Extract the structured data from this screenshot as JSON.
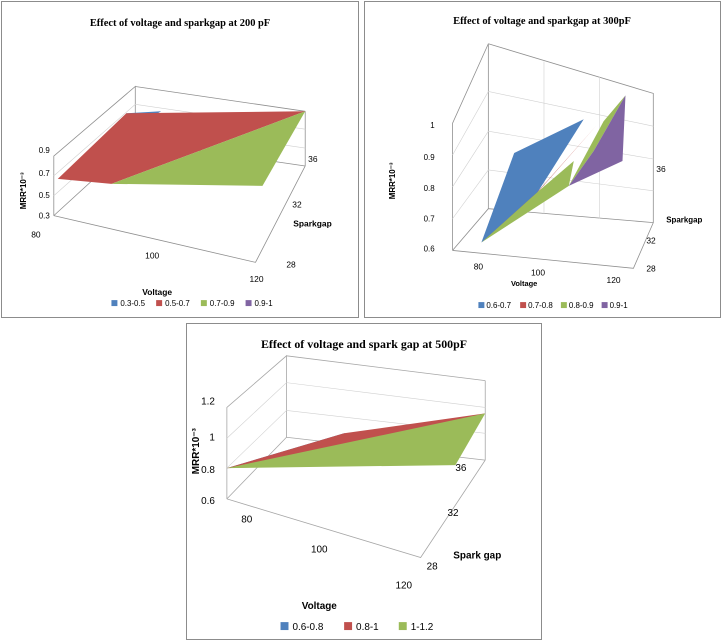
{
  "chart_data": [
    {
      "type": "surface",
      "title": "Effect of voltage and sparkgap at 200 pF",
      "xlabel": "Voltage",
      "ylabel": "Sparkgap",
      "zlabel": "MRR*10⁻³",
      "x_ticks": [
        "80",
        "100",
        "120"
      ],
      "y_ticks": [
        "28",
        "32",
        "36"
      ],
      "z_ticks": [
        "0.3",
        "0.5",
        "0.7",
        "0.9"
      ],
      "zlim": [
        0.3,
        0.9
      ],
      "legend": [
        {
          "label": "0.3-0.5",
          "color": "#4f81bd"
        },
        {
          "label": "0.5-0.7",
          "color": "#c0504d"
        },
        {
          "label": "0.7-0.9",
          "color": "#9bbb59"
        },
        {
          "label": "0.9-1",
          "color": "#8064a2"
        }
      ],
      "legend_position": "bottom",
      "grid": true
    },
    {
      "type": "surface",
      "title": "Effect of voltage and sparkgap at 300pF",
      "xlabel": "Voltage",
      "ylabel": "Sparkgap",
      "zlabel": "MRR*10⁻³",
      "x_ticks": [
        "80",
        "100",
        "120"
      ],
      "y_ticks": [
        "28",
        "32",
        "36"
      ],
      "z_ticks": [
        "0.6",
        "0.7",
        "0.8",
        "0.9",
        "1"
      ],
      "zlim": [
        0.6,
        1
      ],
      "legend": [
        {
          "label": "0.6-0.7",
          "color": "#4f81bd"
        },
        {
          "label": "0.7-0.8",
          "color": "#c0504d"
        },
        {
          "label": "0.8-0.9",
          "color": "#9bbb59"
        },
        {
          "label": "0.9-1",
          "color": "#8064a2"
        }
      ],
      "legend_position": "bottom",
      "grid": true
    },
    {
      "type": "surface",
      "title": "Effect of voltage and spark gap at 500pF",
      "xlabel": "Voltage",
      "ylabel": "Spark gap",
      "zlabel": "MRR*10⁻³",
      "x_ticks": [
        "80",
        "100",
        "120"
      ],
      "y_ticks": [
        "28",
        "32",
        "36"
      ],
      "z_ticks": [
        "0.6",
        "0.8",
        "1",
        "1.2"
      ],
      "zlim": [
        0.6,
        1.2
      ],
      "legend": [
        {
          "label": "0.6-0.8",
          "color": "#4f81bd"
        },
        {
          "label": "0.8-1",
          "color": "#c0504d"
        },
        {
          "label": "1-1.2",
          "color": "#9bbb59"
        }
      ],
      "legend_position": "bottom",
      "grid": true
    }
  ]
}
